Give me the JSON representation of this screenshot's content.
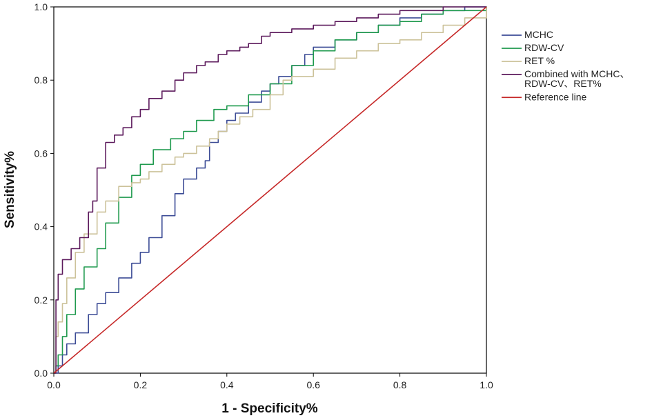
{
  "chart_data": {
    "type": "line",
    "xlabel": "1 - Specificity%",
    "ylabel": "Sensitivity%",
    "xlim": [
      0,
      1
    ],
    "ylim": [
      0,
      1
    ],
    "xticks": [
      "0.0",
      "0.2",
      "0.4",
      "0.6",
      "0.8",
      "1.0"
    ],
    "yticks": [
      "0.0",
      "0.2",
      "0.4",
      "0.6",
      "0.8",
      "1.0"
    ],
    "grid": false,
    "legend_position": "right",
    "series": [
      {
        "name": "MCHC",
        "color": "#3c4c96",
        "x": [
          0,
          0.01,
          0.02,
          0.03,
          0.05,
          0.08,
          0.1,
          0.12,
          0.15,
          0.18,
          0.2,
          0.22,
          0.25,
          0.28,
          0.3,
          0.33,
          0.35,
          0.36,
          0.38,
          0.4,
          0.42,
          0.45,
          0.48,
          0.5,
          0.52,
          0.55,
          0.58,
          0.6,
          0.65,
          0.7,
          0.75,
          0.8,
          0.85,
          0.9,
          0.95,
          1.0
        ],
        "y": [
          0,
          0.02,
          0.05,
          0.08,
          0.11,
          0.16,
          0.19,
          0.22,
          0.26,
          0.3,
          0.33,
          0.37,
          0.43,
          0.49,
          0.53,
          0.56,
          0.58,
          0.63,
          0.66,
          0.69,
          0.71,
          0.74,
          0.77,
          0.79,
          0.81,
          0.84,
          0.87,
          0.89,
          0.91,
          0.93,
          0.95,
          0.97,
          0.98,
          0.99,
          1.0,
          1.0
        ]
      },
      {
        "name": "RDW-CV",
        "color": "#1f9a4e",
        "x": [
          0,
          0.005,
          0.01,
          0.02,
          0.03,
          0.05,
          0.07,
          0.1,
          0.12,
          0.15,
          0.18,
          0.2,
          0.23,
          0.27,
          0.3,
          0.33,
          0.37,
          0.4,
          0.45,
          0.5,
          0.55,
          0.6,
          0.65,
          0.7,
          0.75,
          0.8,
          0.85,
          0.9,
          1.0
        ],
        "y": [
          0,
          0.02,
          0.05,
          0.1,
          0.16,
          0.23,
          0.29,
          0.34,
          0.41,
          0.48,
          0.54,
          0.57,
          0.61,
          0.64,
          0.66,
          0.69,
          0.72,
          0.73,
          0.76,
          0.79,
          0.84,
          0.88,
          0.91,
          0.93,
          0.95,
          0.96,
          0.98,
          0.99,
          1.0
        ]
      },
      {
        "name": "RET %",
        "color": "#ccc29a",
        "x": [
          0,
          0.005,
          0.01,
          0.02,
          0.03,
          0.05,
          0.07,
          0.1,
          0.12,
          0.15,
          0.18,
          0.2,
          0.22,
          0.25,
          0.28,
          0.3,
          0.33,
          0.36,
          0.38,
          0.4,
          0.43,
          0.46,
          0.5,
          0.53,
          0.55,
          0.6,
          0.65,
          0.7,
          0.75,
          0.8,
          0.85,
          0.9,
          0.95,
          1.0
        ],
        "y": [
          0,
          0.1,
          0.14,
          0.19,
          0.26,
          0.33,
          0.38,
          0.44,
          0.47,
          0.51,
          0.52,
          0.53,
          0.55,
          0.57,
          0.59,
          0.6,
          0.62,
          0.64,
          0.66,
          0.68,
          0.7,
          0.72,
          0.76,
          0.8,
          0.81,
          0.83,
          0.86,
          0.88,
          0.9,
          0.91,
          0.93,
          0.95,
          0.97,
          1.0
        ]
      },
      {
        "name": "Combined with MCHC、RDW-CV、RET%",
        "legend_lines": [
          "Combined with MCHC、",
          "RDW-CV、RET%"
        ],
        "color": "#5c1a5c",
        "x": [
          0,
          0.005,
          0.01,
          0.02,
          0.04,
          0.06,
          0.08,
          0.09,
          0.1,
          0.12,
          0.14,
          0.16,
          0.18,
          0.2,
          0.22,
          0.25,
          0.28,
          0.3,
          0.33,
          0.35,
          0.38,
          0.4,
          0.43,
          0.45,
          0.48,
          0.5,
          0.55,
          0.6,
          0.65,
          0.7,
          0.75,
          0.8,
          0.85,
          0.9,
          1.0
        ],
        "y": [
          0,
          0.2,
          0.27,
          0.31,
          0.34,
          0.37,
          0.44,
          0.47,
          0.56,
          0.63,
          0.65,
          0.67,
          0.7,
          0.72,
          0.75,
          0.77,
          0.8,
          0.82,
          0.84,
          0.85,
          0.87,
          0.88,
          0.89,
          0.9,
          0.92,
          0.93,
          0.94,
          0.95,
          0.96,
          0.97,
          0.98,
          0.99,
          0.99,
          1.0,
          1.0
        ]
      },
      {
        "name": "Reference line",
        "color": "#c62828",
        "x": [
          0,
          1
        ],
        "y": [
          0,
          1
        ]
      }
    ]
  }
}
